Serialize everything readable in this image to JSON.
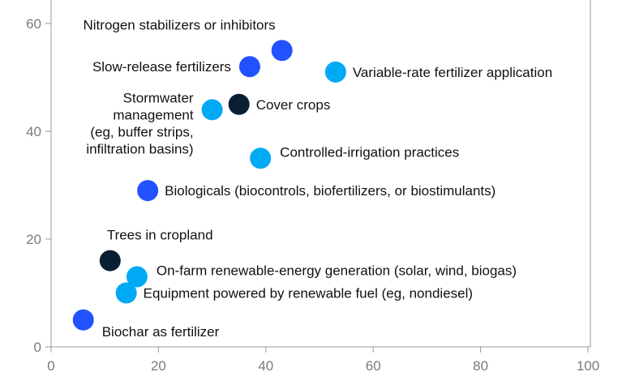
{
  "chart_data": {
    "type": "scatter",
    "title": "",
    "xlabel": "",
    "ylabel": "",
    "xlim": [
      0,
      100
    ],
    "ylim": [
      0,
      60
    ],
    "xticks": [
      0,
      20,
      40,
      60,
      80,
      100
    ],
    "yticks": [
      0,
      20,
      40,
      60
    ],
    "grid": false,
    "colors": {
      "dark": "#0b1f33",
      "blue": "#2251ff",
      "light_blue": "#00a9f4",
      "axis": "#9a9a9a",
      "tick_text": "#7a7a7a",
      "label_text": "#111111"
    },
    "points": [
      {
        "label": "Nitrogen stabilizers or inhibitors",
        "lines": [
          "Nitrogen stabilizers or inhibitors"
        ],
        "x": 43,
        "y": 55,
        "color": "blue",
        "label_pos": "above-left"
      },
      {
        "label": "Slow-release fertilizers",
        "lines": [
          "Slow-release fertilizers"
        ],
        "x": 37,
        "y": 52,
        "color": "blue",
        "label_pos": "left"
      },
      {
        "label": "Variable-rate fertilizer application",
        "lines": [
          "Variable-rate fertilizer application"
        ],
        "x": 53,
        "y": 51,
        "color": "light_blue",
        "label_pos": "right"
      },
      {
        "label": "Stormwater management (eg, buffer strips, infiltration basins)",
        "lines": [
          "Stormwater",
          "management",
          "(eg, buffer strips,",
          "infiltration basins)"
        ],
        "x": 30,
        "y": 44,
        "color": "light_blue",
        "label_pos": "left"
      },
      {
        "label": "Cover crops",
        "lines": [
          "Cover crops"
        ],
        "x": 35,
        "y": 45,
        "color": "dark",
        "label_pos": "right"
      },
      {
        "label": "Controlled-irrigation practices",
        "lines": [
          "Controlled-irrigation practices"
        ],
        "x": 39,
        "y": 35,
        "color": "light_blue",
        "label_pos": "above-right"
      },
      {
        "label": "Biologicals (biocontrols, biofertilizers, or biostimulants)",
        "lines": [
          "Biologicals (biocontrols, biofertilizers, or biostimulants)"
        ],
        "x": 18,
        "y": 29,
        "color": "blue",
        "label_pos": "right"
      },
      {
        "label": "Trees in cropland",
        "lines": [
          "Trees in cropland"
        ],
        "x": 11,
        "y": 16,
        "color": "dark",
        "label_pos": "above-right"
      },
      {
        "label": "On-farm renewable-energy generation (solar, wind, biogas)",
        "lines": [
          "On-farm renewable-energy generation (solar, wind, biogas)"
        ],
        "x": 16,
        "y": 13,
        "color": "light_blue",
        "label_pos": "above-right"
      },
      {
        "label": "Equipment powered by renewable fuel (eg, nondiesel)",
        "lines": [
          "Equipment powered by renewable fuel (eg, nondiesel)"
        ],
        "x": 14,
        "y": 10,
        "color": "light_blue",
        "label_pos": "right"
      },
      {
        "label": "Biochar as fertilizer",
        "lines": [
          "Biochar as fertilizer"
        ],
        "x": 6,
        "y": 5,
        "color": "blue",
        "label_pos": "below-right"
      }
    ]
  }
}
